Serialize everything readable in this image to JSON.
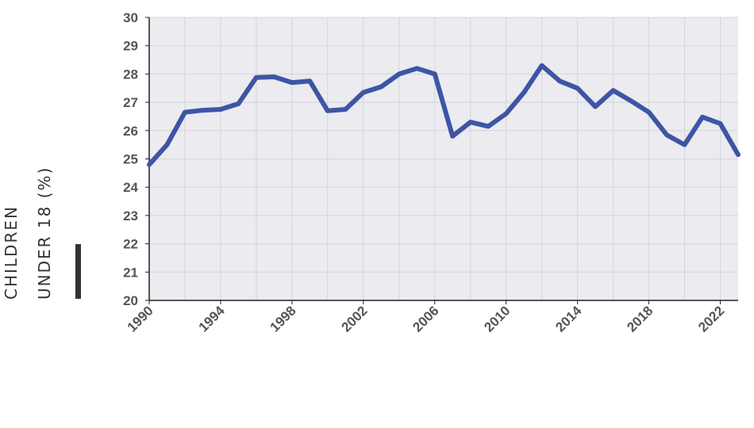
{
  "chart_data": {
    "type": "line",
    "title": "",
    "xlabel": "",
    "ylabel": "CHILDREN UNDER 18 (%)",
    "ylabel_lines": [
      "CHILDREN",
      "UNDER 18 (%)"
    ],
    "ylim": [
      20,
      30
    ],
    "xlim": [
      1990,
      2023
    ],
    "yticks": [
      "20",
      "21",
      "22",
      "23",
      "24",
      "25",
      "26",
      "27",
      "28",
      "29",
      "30"
    ],
    "xticks": [
      "1990",
      "1994",
      "1998",
      "2002",
      "2006",
      "2010",
      "2014",
      "2018",
      "2022"
    ],
    "grid": true,
    "series": [
      {
        "color": "#3d55a5",
        "x": [
          1990,
          1991,
          1992,
          1993,
          1994,
          1995,
          1996,
          1997,
          1998,
          1999,
          2000,
          2001,
          2002,
          2003,
          2004,
          2005,
          2006,
          2007,
          2008,
          2009,
          2010,
          2011,
          2012,
          2013,
          2014,
          2015,
          2016,
          2017,
          2018,
          2019,
          2020,
          2021,
          2022,
          2023
        ],
        "values": [
          24.8,
          25.5,
          26.65,
          26.72,
          26.75,
          26.95,
          27.88,
          27.9,
          27.7,
          27.75,
          26.7,
          26.75,
          27.35,
          27.55,
          28.0,
          28.2,
          28.0,
          25.8,
          26.3,
          26.15,
          26.6,
          27.35,
          28.3,
          27.75,
          27.5,
          26.85,
          27.42,
          27.05,
          26.65,
          25.85,
          25.5,
          26.48,
          26.25,
          25.15
        ]
      }
    ]
  }
}
